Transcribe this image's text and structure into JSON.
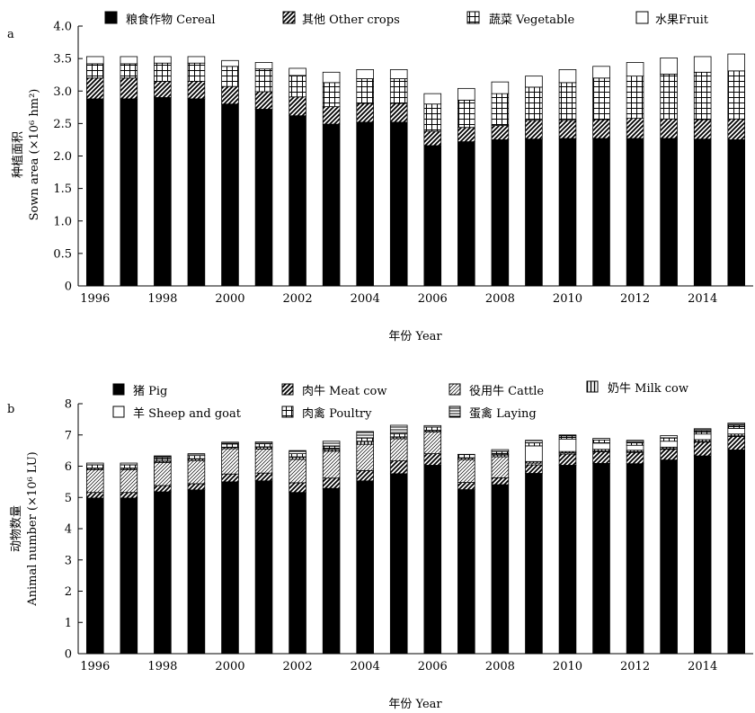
{
  "panels": [
    {
      "panel_label": "a",
      "legend": [
        {
          "label": "粮食作物 Cereal",
          "pattern": "solid-black"
        },
        {
          "label": "其他 Other crops",
          "pattern": "diag-bold"
        },
        {
          "label": "蔬菜 Vegetable",
          "pattern": "grid"
        },
        {
          "label": "水果Fruit",
          "pattern": "white"
        }
      ],
      "ylabel_cn": "种植面积",
      "ylabel_en": "Sown area (×10⁶ hm²)",
      "xlabel": "年份 Year"
    },
    {
      "panel_label": "b",
      "legend": [
        {
          "label": "猪 Pig",
          "pattern": "solid-black"
        },
        {
          "label": "肉牛 Meat cow",
          "pattern": "diag-bold"
        },
        {
          "label": "役用牛 Cattle",
          "pattern": "diag-fine"
        },
        {
          "label": "奶牛 Milk cow",
          "pattern": "vertical"
        },
        {
          "label": "羊 Sheep and goat",
          "pattern": "white"
        },
        {
          "label": "肉禽 Poultry",
          "pattern": "grid"
        },
        {
          "label": "蛋禽 Laying",
          "pattern": "horizontal"
        }
      ],
      "ylabel_cn": "动物数量",
      "ylabel_en": "Animal number (×10⁶ LU)",
      "xlabel": "年份 Year"
    }
  ],
  "chart_data": [
    {
      "type": "bar",
      "stacked": true,
      "categories": [
        "1996",
        "1997",
        "1998",
        "1999",
        "2000",
        "2001",
        "2002",
        "2003",
        "2004",
        "2005",
        "2006",
        "2007",
        "2008",
        "2009",
        "2010",
        "2011",
        "2012",
        "2013",
        "2014",
        "2015"
      ],
      "x_tick_labels": [
        "1996",
        "1998",
        "2000",
        "2002",
        "2004",
        "2006",
        "2008",
        "2010",
        "2012",
        "2014"
      ],
      "y_tick_labels": [
        "0",
        "0.5",
        "1.0",
        "1.5",
        "2.0",
        "2.5",
        "3.0",
        "3.5",
        "4.0"
      ],
      "ylim": [
        0,
        4.0
      ],
      "series": [
        {
          "name": "粮食作物 Cereal",
          "values": [
            2.88,
            2.88,
            2.9,
            2.88,
            2.8,
            2.72,
            2.62,
            2.49,
            2.52,
            2.52,
            2.16,
            2.22,
            2.25,
            2.26,
            2.27,
            2.27,
            2.27,
            2.27,
            2.26,
            2.25
          ]
        },
        {
          "name": "其他 Other crops",
          "values": [
            0.32,
            0.32,
            0.25,
            0.27,
            0.27,
            0.27,
            0.29,
            0.27,
            0.29,
            0.29,
            0.22,
            0.22,
            0.22,
            0.29,
            0.28,
            0.29,
            0.31,
            0.3,
            0.3,
            0.32
          ]
        },
        {
          "name": "蔬菜 Vegetable",
          "values": [
            0.22,
            0.22,
            0.28,
            0.28,
            0.31,
            0.35,
            0.33,
            0.37,
            0.38,
            0.38,
            0.42,
            0.42,
            0.49,
            0.51,
            0.58,
            0.64,
            0.65,
            0.69,
            0.73,
            0.74
          ]
        },
        {
          "name": "水果Fruit",
          "values": [
            0.11,
            0.11,
            0.1,
            0.1,
            0.09,
            0.1,
            0.11,
            0.16,
            0.14,
            0.14,
            0.16,
            0.18,
            0.18,
            0.17,
            0.2,
            0.18,
            0.21,
            0.25,
            0.24,
            0.26
          ]
        }
      ],
      "grid": false
    },
    {
      "type": "bar",
      "stacked": true,
      "categories": [
        "1996",
        "1997",
        "1998",
        "1999",
        "2000",
        "2001",
        "2002",
        "2003",
        "2004",
        "2005",
        "2006",
        "2007",
        "2008",
        "2009",
        "2010",
        "2011",
        "2012",
        "2013",
        "2014",
        "2015"
      ],
      "x_tick_labels": [
        "1996",
        "1998",
        "2000",
        "2002",
        "2004",
        "2006",
        "2008",
        "2010",
        "2012",
        "2014"
      ],
      "y_tick_labels": [
        "0",
        "1",
        "2",
        "3",
        "4",
        "5",
        "6",
        "7",
        "8"
      ],
      "ylim": [
        0,
        8
      ],
      "series": [
        {
          "name": "猪 Pig",
          "values": [
            4.98,
            4.98,
            5.18,
            5.24,
            5.5,
            5.53,
            5.16,
            5.29,
            5.53,
            5.76,
            6.03,
            5.25,
            5.41,
            5.77,
            6.03,
            6.09,
            6.08,
            6.2,
            6.33,
            6.52
          ]
        },
        {
          "name": "肉牛 Meat cow",
          "values": [
            0.18,
            0.18,
            0.2,
            0.2,
            0.25,
            0.25,
            0.31,
            0.33,
            0.33,
            0.41,
            0.37,
            0.23,
            0.22,
            0.27,
            0.36,
            0.37,
            0.36,
            0.34,
            0.44,
            0.43
          ]
        },
        {
          "name": "役用牛 Cattle",
          "values": [
            0.73,
            0.73,
            0.74,
            0.74,
            0.81,
            0.77,
            0.75,
            0.86,
            0.84,
            0.71,
            0.7,
            0.73,
            0.67,
            0.06,
            0.04,
            0.02,
            0.02,
            0.02,
            0.02,
            0.02
          ]
        },
        {
          "name": "奶牛 Milk cow",
          "values": [
            0.04,
            0.04,
            0.04,
            0.05,
            0.04,
            0.06,
            0.07,
            0.05,
            0.09,
            0.05,
            0.04,
            0.05,
            0.06,
            0.05,
            0.04,
            0.06,
            0.05,
            0.05,
            0.06,
            0.06
          ]
        },
        {
          "name": "羊 Sheep and goat",
          "values": [
            0.01,
            0.01,
            0.01,
            0.01,
            0.01,
            0.01,
            0.01,
            0.01,
            0.01,
            0.01,
            0.01,
            0.01,
            0.01,
            0.5,
            0.4,
            0.2,
            0.16,
            0.19,
            0.18,
            0.18
          ]
        },
        {
          "name": "肉禽 Poultry",
          "values": [
            0.1,
            0.1,
            0.1,
            0.1,
            0.1,
            0.1,
            0.1,
            0.1,
            0.1,
            0.1,
            0.1,
            0.1,
            0.1,
            0.1,
            0.1,
            0.1,
            0.1,
            0.1,
            0.1,
            0.1
          ]
        },
        {
          "name": "蛋禽 Laying",
          "values": [
            0.06,
            0.06,
            0.06,
            0.06,
            0.06,
            0.06,
            0.1,
            0.16,
            0.21,
            0.27,
            0.05,
            0.01,
            0.06,
            0.08,
            0.03,
            0.05,
            0.06,
            0.08,
            0.07,
            0.07
          ]
        }
      ],
      "grid": false
    }
  ]
}
